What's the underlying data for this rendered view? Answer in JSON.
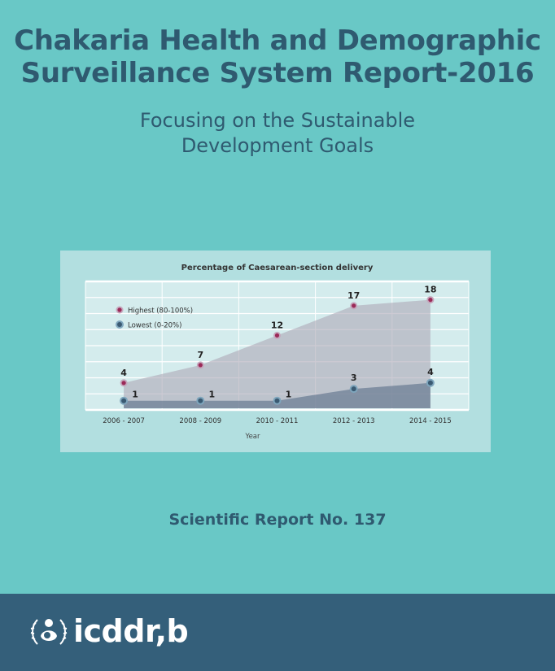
{
  "title_line1": "Chakaria Health and Demographic",
  "title_line2": "Surveillance System Report-2016",
  "subtitle_line1": "Focusing on the Sustainable",
  "subtitle_line2": "Development Goals",
  "report_number": "Scientific Report No. 137",
  "logo_text": "icddr,b",
  "colors": {
    "background": "#69c8c6",
    "title": "#2f5a70",
    "footer": "#345f7a",
    "highest": "#9b2a58",
    "lowest": "#3a5a72"
  },
  "chart_data": {
    "type": "area",
    "title": "Percentage of Caesarean-section delivery",
    "xlabel": "Year",
    "ylabel": "",
    "categories": [
      "2006 - 2007",
      "2008 - 2009",
      "2010 - 2011",
      "2012 - 2013",
      "2014 - 2015"
    ],
    "ylim": [
      0,
      20
    ],
    "grid": true,
    "legend": "top-left",
    "series": [
      {
        "name": "Highest (80-100%)",
        "values": [
          4,
          7,
          12,
          17,
          18
        ]
      },
      {
        "name": "Lowest (0-20%)",
        "values": [
          1,
          1,
          1,
          3,
          4
        ]
      }
    ]
  }
}
